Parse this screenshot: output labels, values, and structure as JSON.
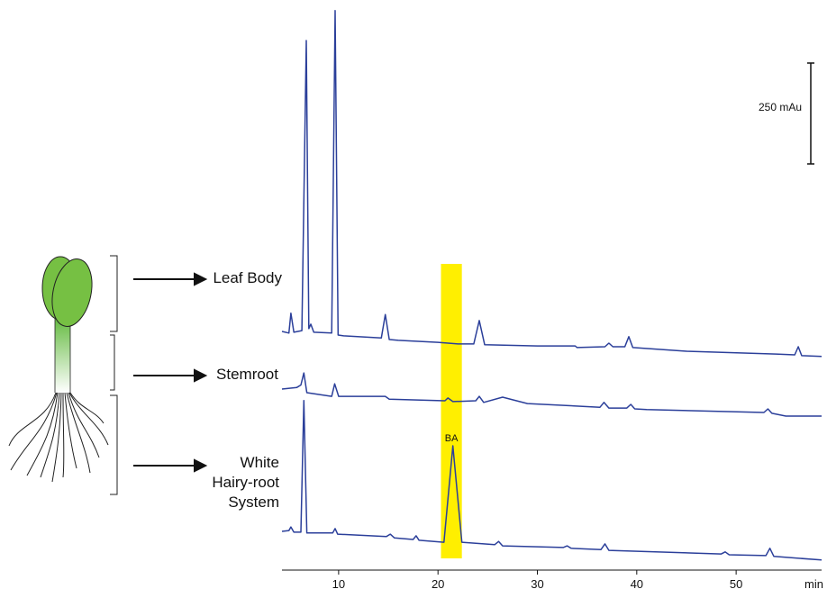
{
  "chart_data": {
    "type": "line",
    "xlabel": "min",
    "xlim": [
      4.3,
      58.6
    ],
    "xticks": [
      10,
      20,
      30,
      40,
      50
    ],
    "scale_bar": {
      "value": 250,
      "label": "250 mAu"
    },
    "highlight": {
      "label": "BA",
      "x": [
        20.3,
        22.4
      ]
    },
    "series": [
      {
        "name": "Leaf Body",
        "color": "#2b3f9a",
        "x": [
          4.3,
          5.0,
          5.2,
          5.5,
          6.3,
          6.75,
          7.0,
          7.2,
          7.5,
          9.3,
          9.65,
          9.95,
          10.5,
          14.3,
          14.7,
          15.1,
          16,
          20,
          22,
          23.6,
          24.15,
          24.7,
          30,
          33.8,
          34,
          36.8,
          37.2,
          37.6,
          38.8,
          39.2,
          39.6,
          45,
          54,
          55.9,
          56.25,
          56.6,
          58.6
        ],
        "values": [
          0,
          -4,
          45,
          -2,
          2,
          721,
          7,
          18,
          -2,
          -4,
          795,
          -9,
          -11,
          -16,
          42,
          -20,
          -22,
          -27,
          -31,
          -31,
          27,
          -33,
          -36,
          -36,
          -40,
          -38,
          -29,
          -38,
          -38,
          -13,
          -40,
          -49,
          -56,
          -58,
          -38,
          -60,
          -62
        ]
      },
      {
        "name": "Stemroot",
        "color": "#2b3f9a",
        "x": [
          4.3,
          5.8,
          6.2,
          6.5,
          6.8,
          9.3,
          9.6,
          10.0,
          14.7,
          15.1,
          20.7,
          21.0,
          21.5,
          23.8,
          24.15,
          24.6,
          26.5,
          29,
          36.3,
          36.7,
          37.2,
          39.0,
          39.4,
          39.8,
          41,
          52.8,
          53.2,
          53.6,
          55,
          58.6
        ],
        "values": [
          0,
          4,
          10,
          40,
          -9,
          -18,
          13,
          -18,
          -18,
          -25,
          -29,
          -22,
          -31,
          -29,
          -18,
          -33,
          -20,
          -36,
          -45,
          -33,
          -47,
          -47,
          -38,
          -49,
          -51,
          -58,
          -49,
          -60,
          -67,
          -67
        ]
      },
      {
        "name": "White Hairy-root System",
        "color": "#2b3f9a",
        "x": [
          4.3,
          5.0,
          5.2,
          5.5,
          6.2,
          6.5,
          6.8,
          9.4,
          9.65,
          9.9,
          14.8,
          15.2,
          15.6,
          17.5,
          17.8,
          18.1,
          20.6,
          21.5,
          22.4,
          25.7,
          26.1,
          26.5,
          32.6,
          33,
          33.4,
          36.4,
          36.8,
          37.2,
          48.5,
          48.9,
          49.3,
          53.0,
          53.4,
          53.8,
          58.6
        ],
        "values": [
          0,
          2,
          11,
          -2,
          -2,
          324,
          -4,
          -4,
          7,
          -7,
          -13,
          -7,
          -16,
          -20,
          -11,
          -22,
          -27,
          212,
          -27,
          -33,
          -25,
          -36,
          -40,
          -36,
          -42,
          -45,
          -31,
          -47,
          -56,
          -51,
          -58,
          -60,
          -42,
          -62,
          -71
        ]
      }
    ]
  }
}
